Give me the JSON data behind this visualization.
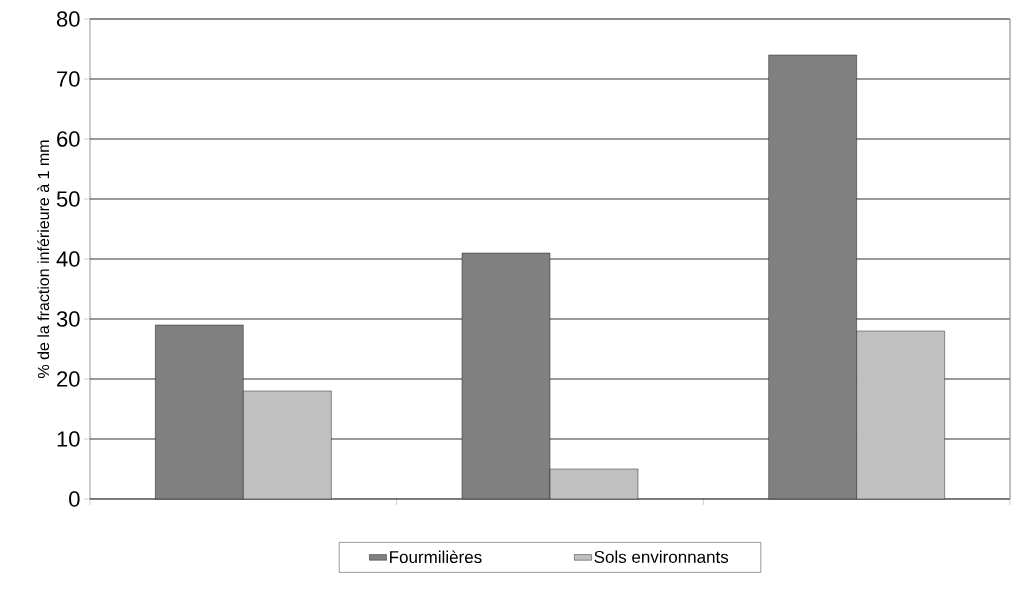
{
  "chart_data": {
    "type": "bar",
    "ylabel": "% de la fraction inférieure à 1 mm",
    "categories": [
      null,
      null,
      null
    ],
    "series": [
      {
        "name": "Fourmilières",
        "color": "#808080",
        "values": [
          29,
          41,
          74
        ]
      },
      {
        "name": "Sols environnants",
        "color": "#c0c0c0",
        "values": [
          18,
          5,
          28
        ]
      }
    ],
    "ylim": [
      0,
      80
    ],
    "yticks": [
      0,
      10,
      20,
      30,
      40,
      50,
      60,
      70,
      80
    ],
    "grid": "y",
    "legend": "bottom"
  }
}
